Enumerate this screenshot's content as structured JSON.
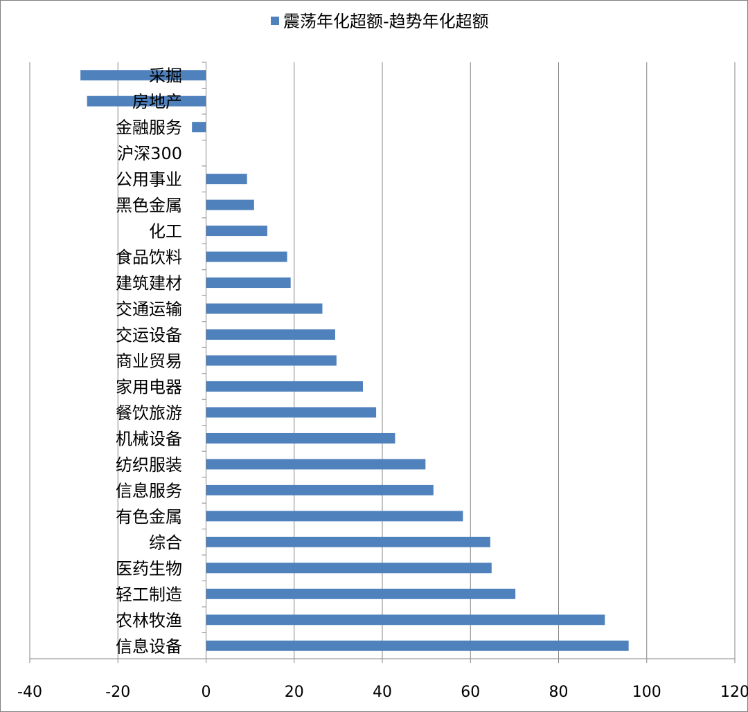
{
  "chart_data": {
    "type": "bar",
    "orientation": "horizontal",
    "categories": [
      "采掘",
      "房地产",
      "金融服务",
      "沪深300",
      "公用事业",
      "黑色金属",
      "化工",
      "食品饮料",
      "建筑建材",
      "交通运输",
      "交运设备",
      "商业贸易",
      "家用电器",
      "餐饮旅游",
      "机械设备",
      "纺织服装",
      "信息服务",
      "有色金属",
      "综合",
      "医药生物",
      "轻工制造",
      "农林牧渔",
      "信息设备"
    ],
    "series": [
      {
        "name": "震荡年化超额-趋势年化超额",
        "values": [
          -28.5,
          -27,
          -3.2,
          0,
          9.3,
          10.9,
          13.9,
          18.4,
          19.2,
          26.4,
          29.3,
          29.6,
          35.6,
          38.6,
          42.9,
          49.8,
          51.6,
          58.3,
          64.5,
          64.8,
          70.2,
          90.5,
          95.9
        ]
      }
    ],
    "xlim": [
      -40,
      120
    ],
    "xticks": [
      -40,
      -20,
      0,
      20,
      40,
      60,
      80,
      100,
      120
    ],
    "grid": true,
    "legend_position": "top",
    "colors": {
      "bar": "#4f81bd",
      "grid": "#868686"
    }
  }
}
